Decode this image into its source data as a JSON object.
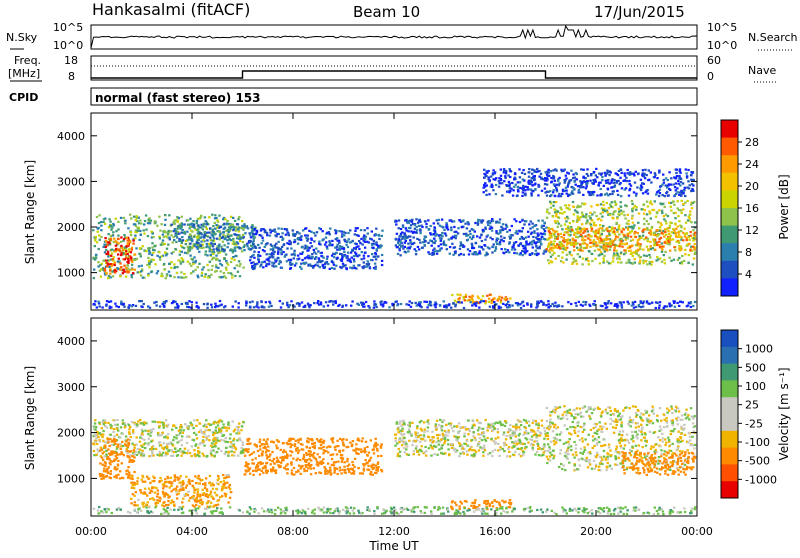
{
  "header": {
    "site": "Hankasalmi (fitACF)",
    "beam": "Beam 10",
    "date": "17/Jun/2015"
  },
  "noise_panel": {
    "left_label": "N.Sky",
    "left_ticks": [
      "10^5",
      "10^0"
    ],
    "right_ticks": [
      "10^5",
      "10^0"
    ],
    "right_label": "N.Search"
  },
  "freq_panel": {
    "label_top": "Freq.",
    "label_unit": "[MHz]",
    "left_ticks": [
      "18",
      "8"
    ],
    "right_ticks": [
      "60",
      "0"
    ],
    "right_label": "Nave",
    "cpid_label": "CPID"
  },
  "cpid_text": "normal (fast stereo) 153",
  "x_axis": {
    "ticks": [
      "00:00",
      "04:00",
      "08:00",
      "12:00",
      "16:00",
      "20:00",
      "00:00"
    ],
    "label": "Time UT"
  },
  "power_panel": {
    "ylabel": "Slant Range [km]",
    "yticks": [
      "4000",
      "3000",
      "2000",
      "1000"
    ],
    "cbar_label": "Power [dB]",
    "cbar_ticks": [
      "28",
      "24",
      "20",
      "16",
      "12",
      "8",
      "4"
    ],
    "cbar_colors": [
      "#e80000",
      "#ff5a00",
      "#ff9a00",
      "#f2c200",
      "#c9d400",
      "#8fc24a",
      "#3f9a74",
      "#2a7fae",
      "#1d4fc0",
      "#1020ff"
    ]
  },
  "velocity_panel": {
    "ylabel": "Slant Range [km]",
    "yticks": [
      "4000",
      "3000",
      "2000",
      "1000"
    ],
    "cbar_label": "Velocity [m s⁻¹]",
    "cbar_ticks": [
      "1000",
      "500",
      "100",
      "25",
      "-25",
      "-100",
      "-500",
      "-1000"
    ],
    "cbar_colors": [
      "#1a4fc0",
      "#2a6fb0",
      "#3f9a74",
      "#6cc04a",
      "#c8c8c0",
      "#c8c8c0",
      "#f0b400",
      "#ff8a00",
      "#ff5000",
      "#e80000"
    ]
  },
  "chart_data": [
    {
      "type": "heatmap",
      "title": "Power",
      "xlabel": "Time UT",
      "ylabel": "Slant Range [km]",
      "xlim": [
        "00:00",
        "24:00"
      ],
      "ylim": [
        180,
        4500
      ],
      "colorbar": {
        "label": "Power [dB]",
        "range": [
          0,
          30
        ]
      },
      "regions": [
        {
          "t0": 0.0,
          "t1": 6.0,
          "r0": 900,
          "r1": 2300,
          "dB": 16
        },
        {
          "t0": 0.5,
          "t1": 1.7,
          "r0": 1000,
          "r1": 1800,
          "dB": 28
        },
        {
          "t0": 3.0,
          "t1": 6.5,
          "r0": 1500,
          "r1": 2100,
          "dB": 12
        },
        {
          "t0": 6.2,
          "t1": 11.5,
          "r0": 1100,
          "r1": 2000,
          "dB": 8
        },
        {
          "t0": 12.0,
          "t1": 18.0,
          "r0": 1400,
          "r1": 2200,
          "dB": 8
        },
        {
          "t0": 14.2,
          "t1": 16.6,
          "r0": 350,
          "r1": 550,
          "dB": 24
        },
        {
          "t0": 18.0,
          "t1": 24.0,
          "r0": 1200,
          "r1": 2600,
          "dB": 18
        },
        {
          "t0": 18.0,
          "t1": 24.0,
          "r0": 1500,
          "r1": 2000,
          "dB": 24
        },
        {
          "t0": 15.5,
          "t1": 24.0,
          "r0": 2700,
          "r1": 3300,
          "dB": 6
        },
        {
          "t0": 0.0,
          "t1": 24.0,
          "r0": 200,
          "r1": 400,
          "dB": 6
        }
      ]
    },
    {
      "type": "heatmap",
      "title": "Velocity",
      "xlabel": "Time UT",
      "ylabel": "Slant Range [km]",
      "xlim": [
        "00:00",
        "24:00"
      ],
      "ylim": [
        180,
        4500
      ],
      "colorbar": {
        "label": "Velocity [m s⁻¹]",
        "range": [
          -1000,
          1000
        ]
      },
      "regions": [
        {
          "t0": 0.0,
          "t1": 6.0,
          "r0": 1500,
          "r1": 2300,
          "v": 0
        },
        {
          "t0": 0.3,
          "t1": 1.7,
          "r0": 1000,
          "r1": 1900,
          "v": -300
        },
        {
          "t0": 1.5,
          "t1": 5.5,
          "r0": 400,
          "r1": 1100,
          "v": -100
        },
        {
          "t0": 6.0,
          "t1": 11.5,
          "r0": 1100,
          "r1": 1900,
          "v": -400
        },
        {
          "t0": 12.0,
          "t1": 18.0,
          "r0": 1500,
          "r1": 2300,
          "v": 0
        },
        {
          "t0": 14.2,
          "t1": 16.6,
          "r0": 350,
          "r1": 550,
          "v": -300
        },
        {
          "t0": 18.0,
          "t1": 24.0,
          "r0": 1200,
          "r1": 2600,
          "v": 0
        },
        {
          "t0": 21.0,
          "t1": 24.0,
          "r0": 1100,
          "r1": 1600,
          "v": -200
        },
        {
          "t0": 0.0,
          "t1": 24.0,
          "r0": 200,
          "r1": 400,
          "v": 60
        }
      ]
    }
  ]
}
